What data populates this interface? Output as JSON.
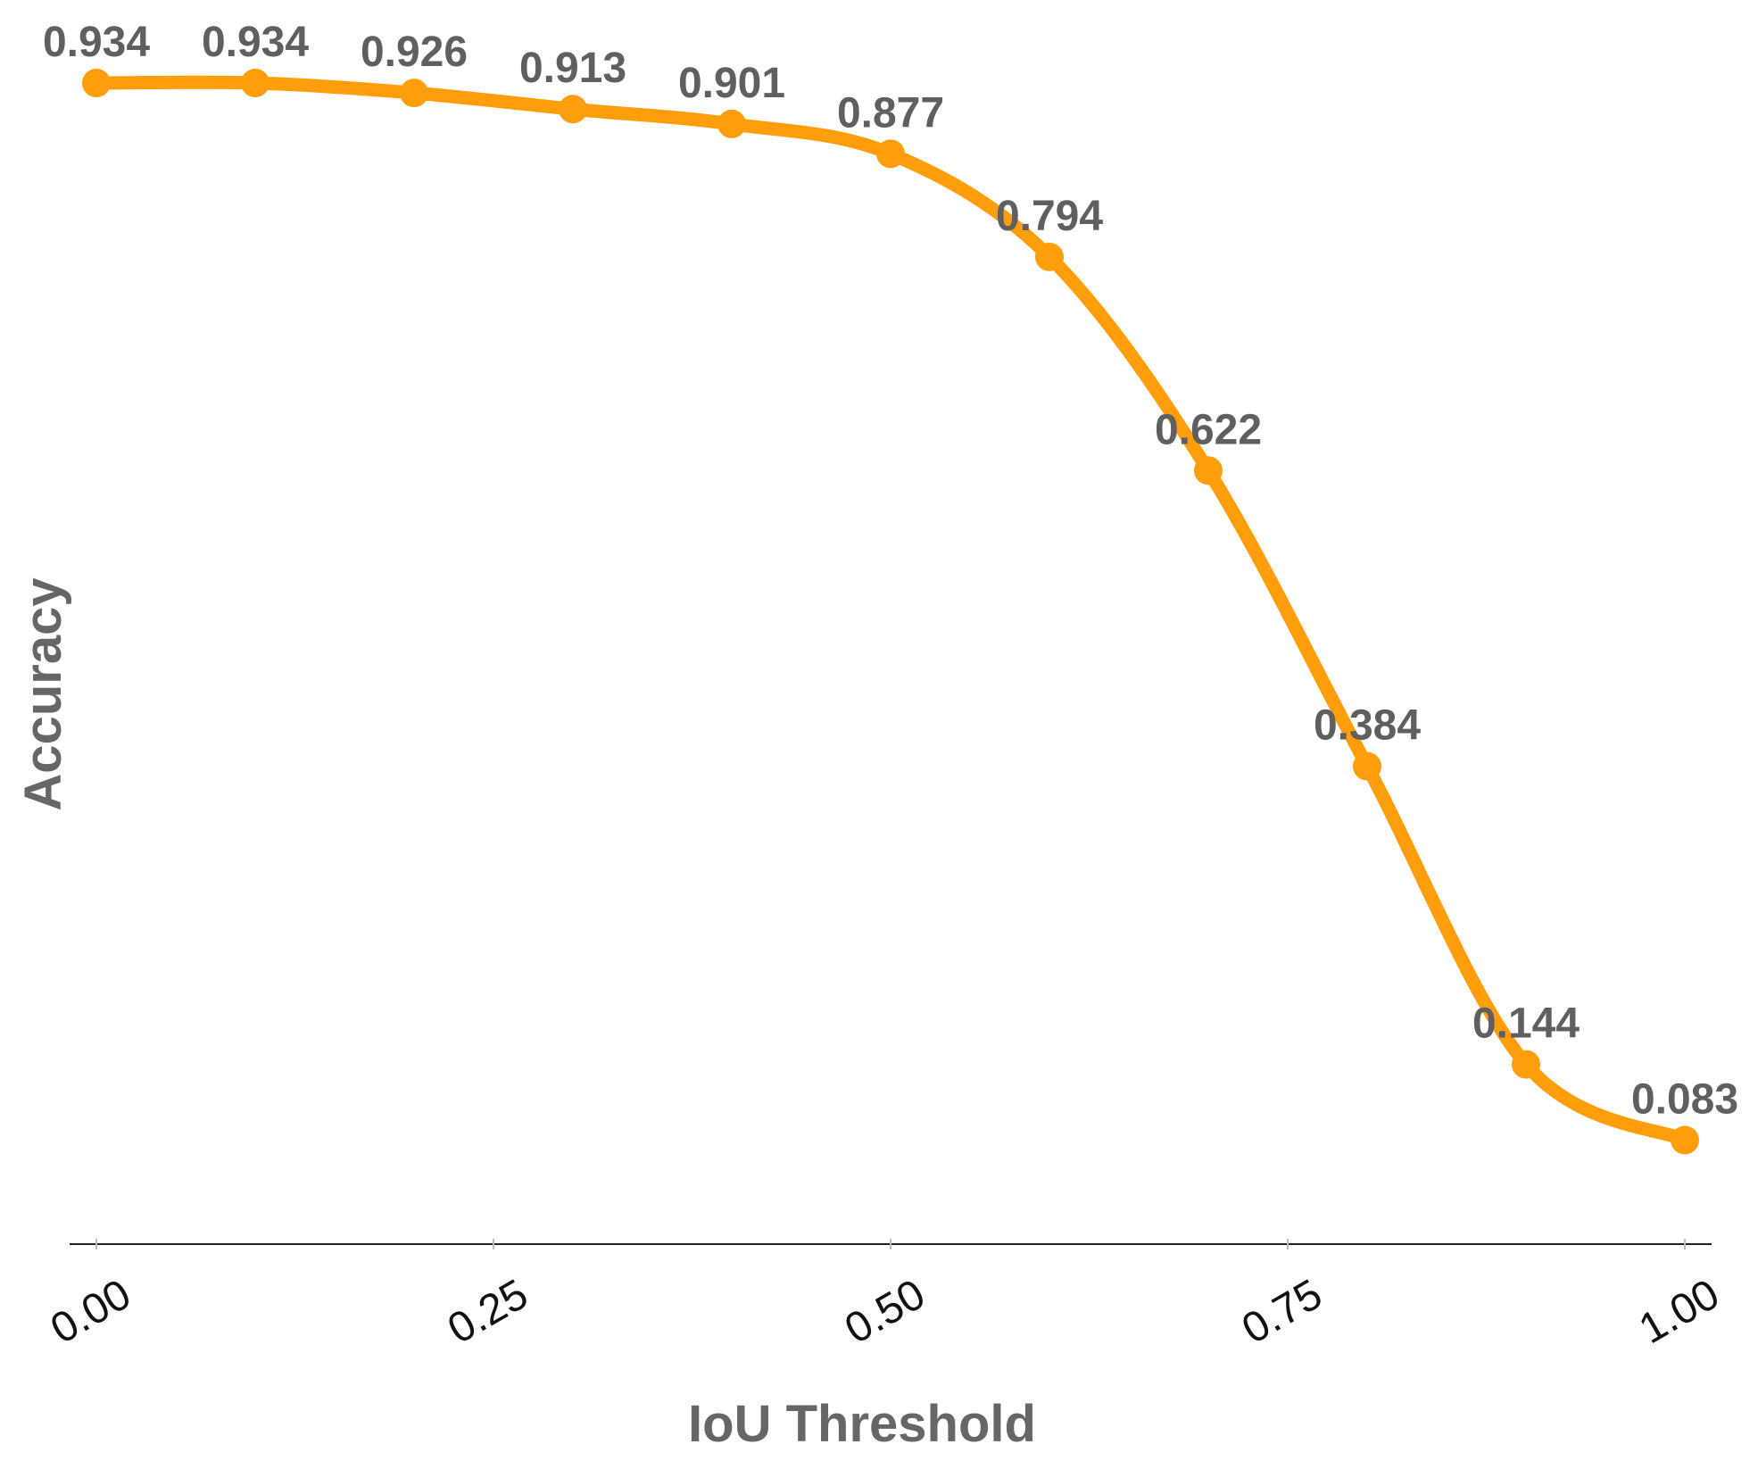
{
  "chart_data": {
    "type": "line",
    "xlabel": "IoU Threshold",
    "ylabel": "Accuracy",
    "x": [
      0.0,
      0.1,
      0.2,
      0.3,
      0.4,
      0.5,
      0.6,
      0.7,
      0.8,
      0.9,
      1.0
    ],
    "series": [
      {
        "values": [
          0.934,
          0.934,
          0.926,
          0.913,
          0.901,
          0.877,
          0.794,
          0.622,
          0.384,
          0.144,
          0.083
        ],
        "labels": [
          "0.934",
          "0.934",
          "0.926",
          "0.913",
          "0.901",
          "0.877",
          "0.794",
          "0.622",
          "0.384",
          "0.144",
          "0.083"
        ],
        "color": "#FF9D0A"
      }
    ],
    "xticks": [
      0.0,
      0.25,
      0.5,
      0.75,
      1.0
    ],
    "xtick_labels": [
      "0.00",
      "0.25",
      "0.50",
      "0.75",
      "1.00"
    ],
    "xlim": [
      0.0,
      1.0
    ],
    "ylim": [
      0.0,
      0.934
    ],
    "grid": false,
    "legend": "none",
    "colors": {
      "line": "#FF9D0A",
      "data_label": "#5f5f5f",
      "axis_title": "#666666",
      "tick_label": "#111111",
      "axis_line": "#222222",
      "tick_mark": "#bbbbbb"
    }
  }
}
